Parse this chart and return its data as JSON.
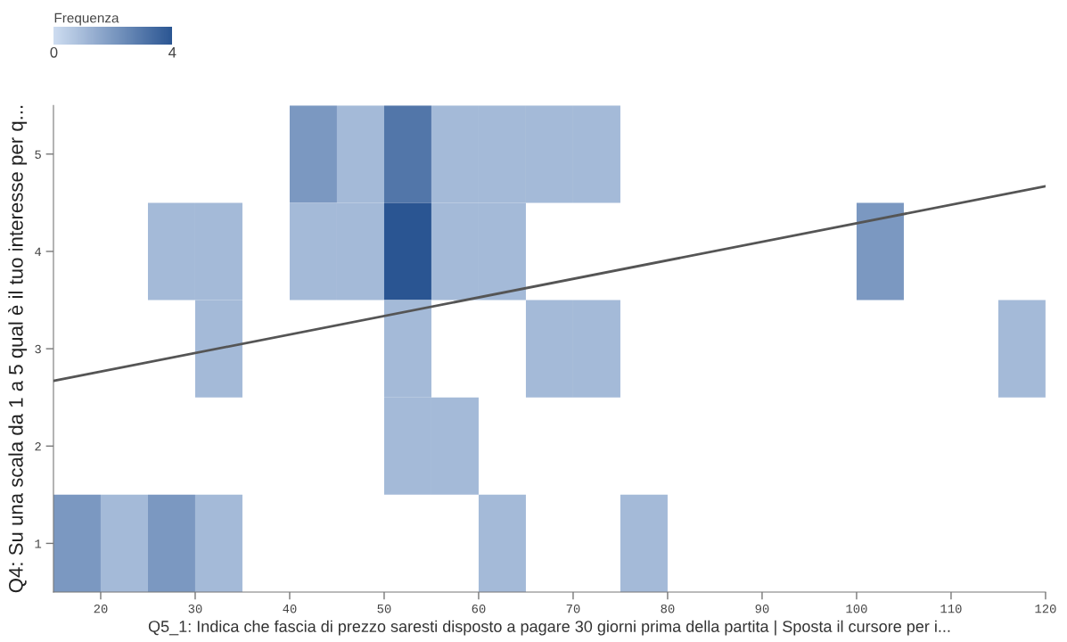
{
  "chart_data": {
    "type": "heatmap",
    "xlabel": "Q5_1: Indica che fascia di prezzo saresti disposto a pagare 30 giorni prima della partita | Sposta il cursore per i...",
    "ylabel": "Q4: Su una scala da 1 a 5 qual è il tuo interesse per q...",
    "clabel": "Frequenza",
    "clim": [
      0,
      4
    ],
    "cticks": [
      0,
      4
    ],
    "x": [
      17.5,
      22.5,
      27.5,
      32.5,
      37.5,
      42.5,
      47.5,
      52.5,
      57.5,
      62.5,
      67.5,
      72.5,
      77.5,
      82.5,
      87.5,
      92.5,
      97.5,
      102.5,
      107.5,
      112.5,
      117.5
    ],
    "xlim": [
      15,
      120
    ],
    "xticks": [
      20,
      30,
      40,
      50,
      60,
      70,
      80,
      90,
      100,
      110,
      120
    ],
    "ylim": [
      0.5,
      5.5
    ],
    "yticks": [
      1,
      2,
      3,
      4,
      5
    ],
    "cells": [
      [
        null,
        null,
        null,
        null,
        null,
        2,
        1,
        3,
        1,
        1,
        1,
        1,
        null,
        null,
        null,
        null,
        null,
        null,
        null,
        null,
        null
      ],
      [
        null,
        null,
        1,
        1,
        null,
        1,
        1,
        4,
        1,
        1,
        null,
        null,
        null,
        null,
        null,
        null,
        null,
        2,
        null,
        null,
        null
      ],
      [
        null,
        null,
        null,
        1,
        null,
        null,
        null,
        1,
        null,
        null,
        1,
        1,
        null,
        null,
        null,
        null,
        null,
        null,
        null,
        null,
        1
      ],
      [
        null,
        null,
        null,
        null,
        null,
        null,
        null,
        1,
        1,
        null,
        null,
        null,
        null,
        null,
        null,
        null,
        null,
        null,
        null,
        null,
        null
      ],
      [
        2,
        1,
        2,
        1,
        null,
        null,
        null,
        null,
        null,
        1,
        null,
        null,
        1,
        null,
        null,
        null,
        null,
        null,
        null,
        null,
        null
      ]
    ],
    "series": [
      {
        "type": "line",
        "x": [
          15,
          120
        ],
        "values": [
          2.67,
          4.67
        ],
        "color": "#555555"
      }
    ],
    "grid": false,
    "legend": false
  }
}
